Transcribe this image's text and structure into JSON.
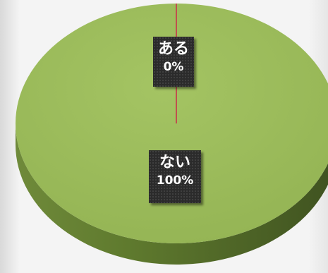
{
  "chart_data": {
    "type": "pie",
    "title": "",
    "legend": "none",
    "categories": [
      "ある",
      "ない"
    ],
    "values": [
      0,
      100
    ],
    "data_labels": [
      {
        "category": "ある",
        "value": "0%"
      },
      {
        "category": "ない",
        "value": "100%"
      }
    ],
    "colors": {
      "ない": "#9bbb59",
      "ある": "#c0504d"
    }
  }
}
